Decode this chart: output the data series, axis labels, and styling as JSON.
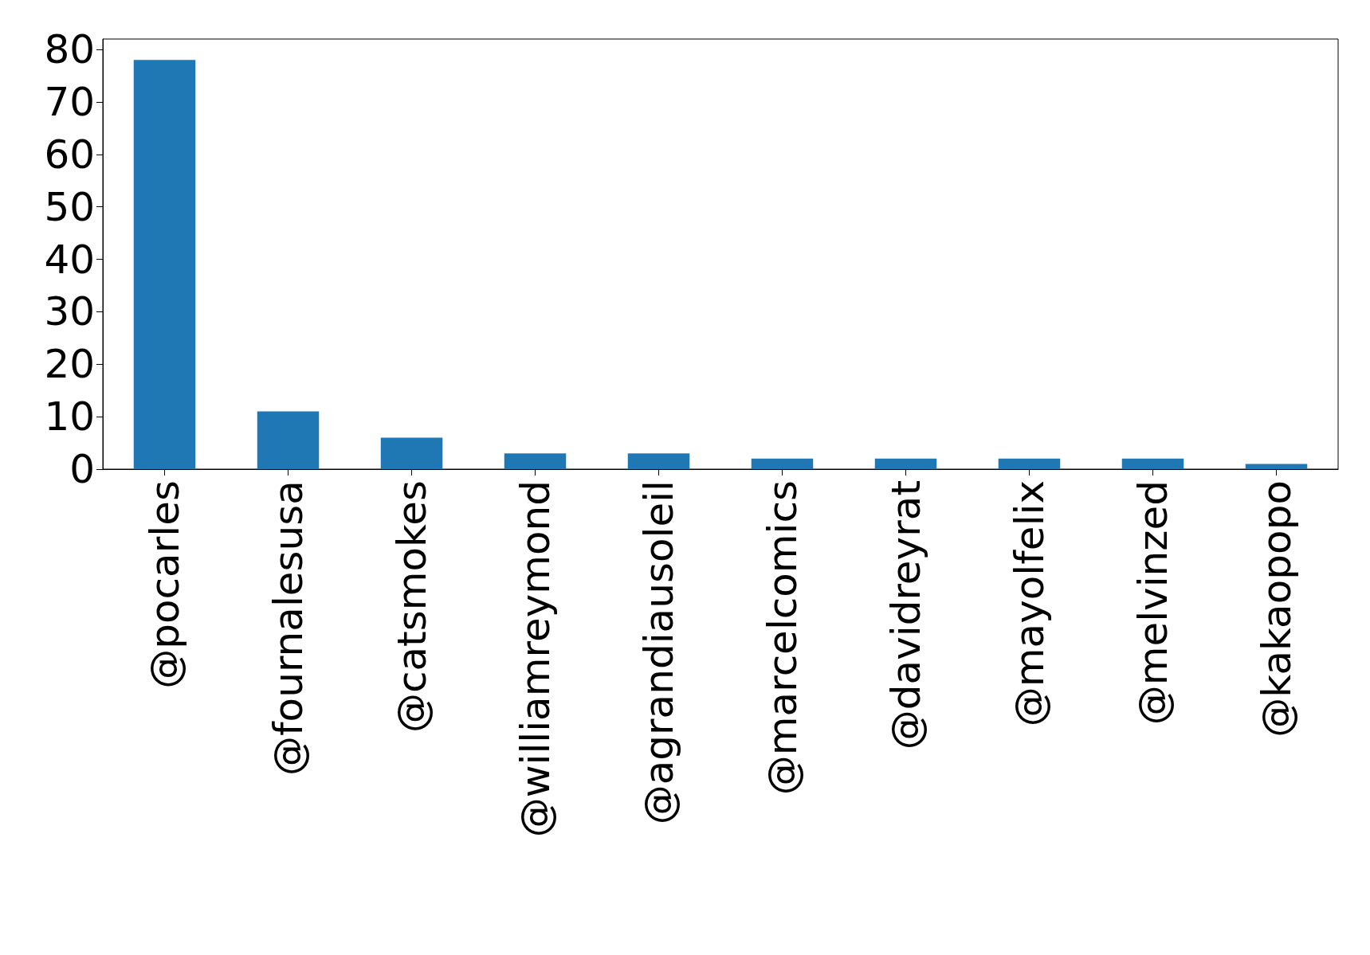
{
  "chart_data": {
    "type": "bar",
    "categories": [
      "@pocarles",
      "@fournalesusa",
      "@catsmokes",
      "@williamreymond",
      "@agrandiausoleil",
      "@marcelcomics",
      "@davidreyrat",
      "@mayolfelix",
      "@melvinzed",
      "@kakaopopo"
    ],
    "values": [
      78,
      11,
      6,
      3,
      3,
      2,
      2,
      2,
      2,
      1
    ],
    "color": "#1f77b4",
    "ylim": [
      0,
      82
    ],
    "yticks": [
      0,
      10,
      20,
      30,
      40,
      50,
      60,
      70,
      80
    ],
    "grid": false
  }
}
